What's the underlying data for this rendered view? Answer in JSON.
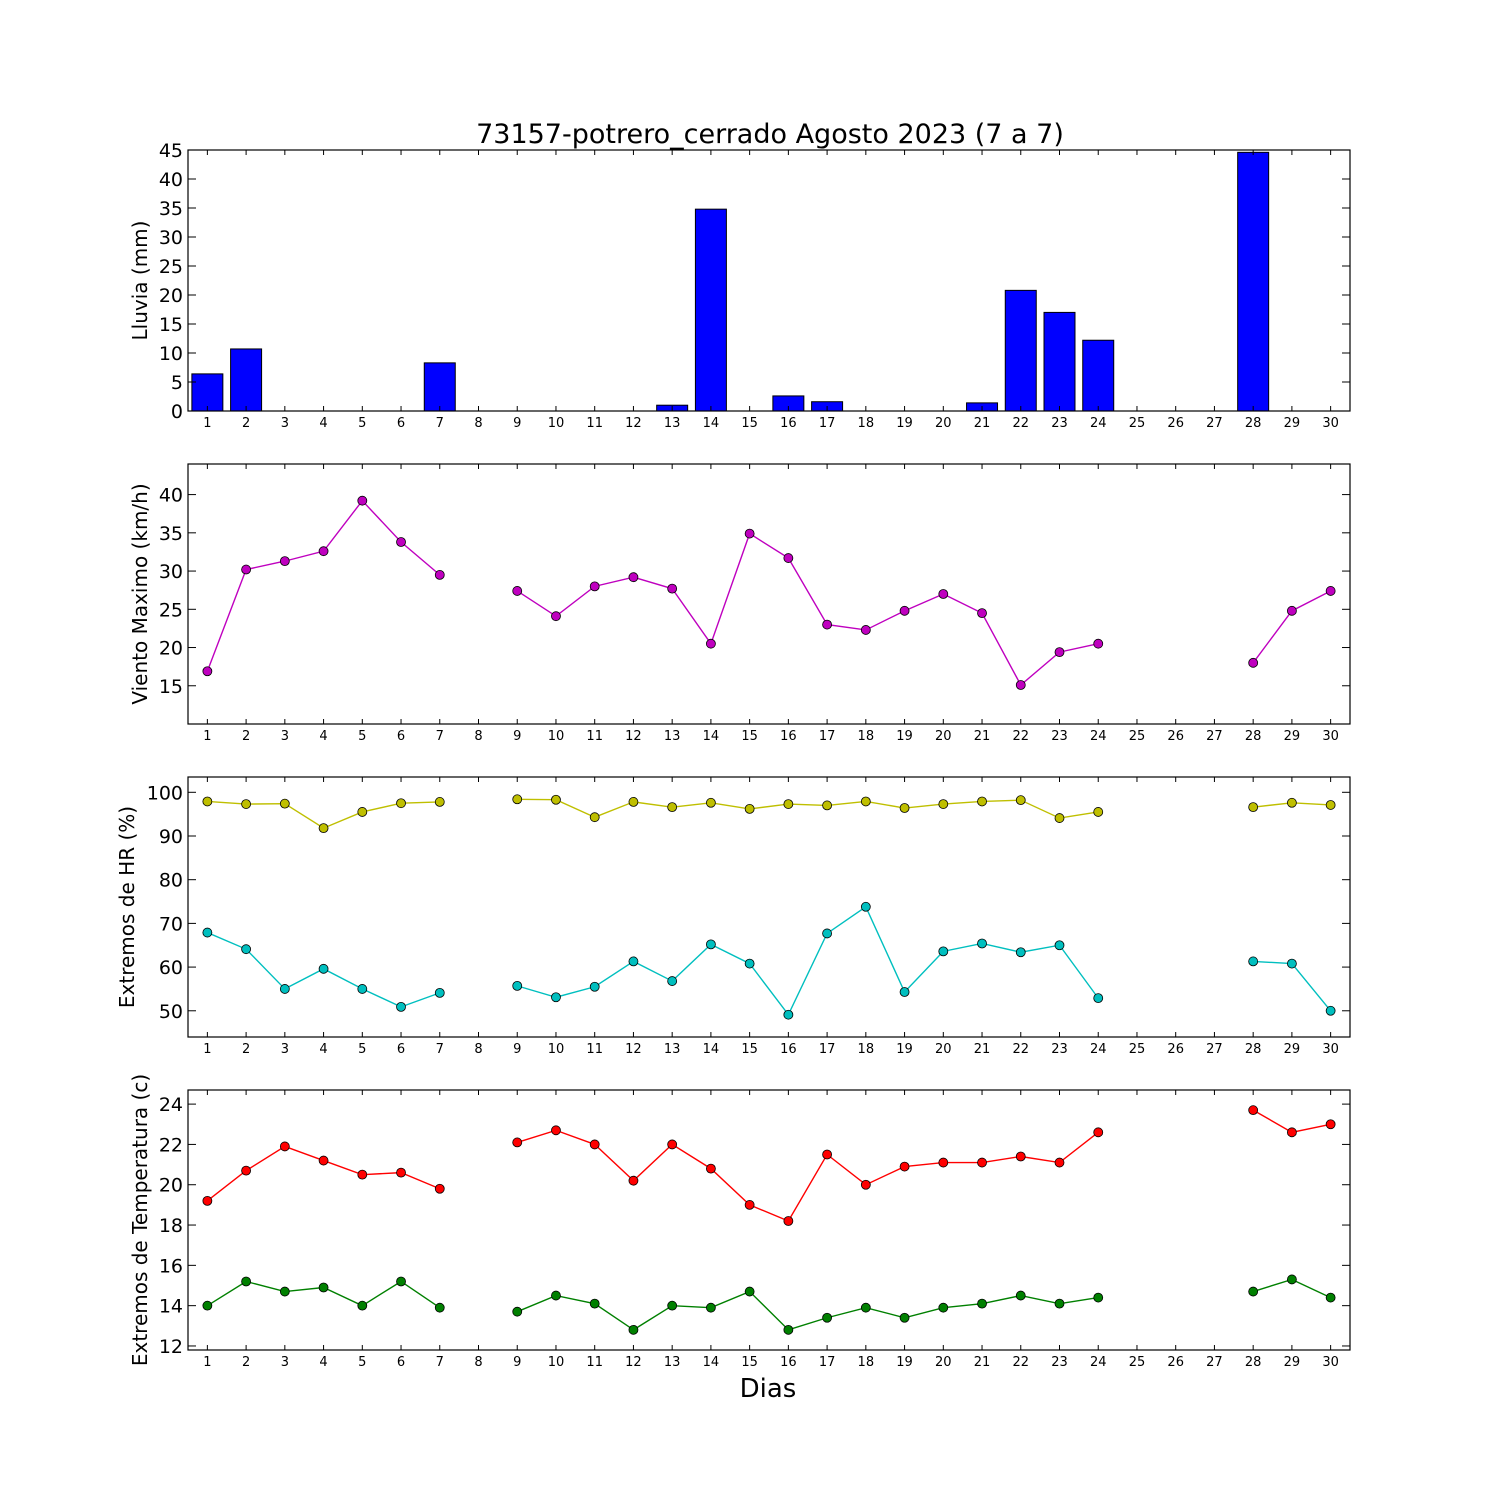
{
  "title": "73157-potrero_cerrado Agosto 2023  (7 a 7)",
  "xlabel": "Dias",
  "colors": {
    "rain_bar": "#0000ff",
    "wind": "#bf00bf",
    "hr_max": "#bfbf00",
    "hr_min": "#00bfbf",
    "temp_max": "#ff0000",
    "temp_min": "#008000"
  },
  "chart_data": [
    {
      "type": "bar",
      "ylabel": "Lluvia (mm)",
      "x": [
        1,
        2,
        3,
        4,
        5,
        6,
        7,
        8,
        9,
        10,
        11,
        12,
        13,
        14,
        15,
        16,
        17,
        18,
        19,
        20,
        21,
        22,
        23,
        24,
        25,
        26,
        27,
        28,
        29,
        30
      ],
      "xlim": [
        0.5,
        30.5
      ],
      "ylim": [
        0,
        45
      ],
      "yticks": [
        0,
        5,
        10,
        15,
        20,
        25,
        30,
        35,
        40,
        45
      ],
      "series": [
        {
          "values": [
            6.4,
            10.7,
            0,
            0,
            0,
            0,
            8.3,
            0,
            0,
            0,
            0,
            0,
            1,
            34.8,
            0,
            2.6,
            1.6,
            0,
            0,
            0,
            1.4,
            20.8,
            17,
            12.2,
            0,
            0,
            0,
            44.6,
            0,
            0
          ]
        }
      ]
    },
    {
      "type": "line",
      "ylabel": "Viento Maximo (km/h)",
      "x": [
        1,
        2,
        3,
        4,
        5,
        6,
        7,
        8,
        9,
        10,
        11,
        12,
        13,
        14,
        15,
        16,
        17,
        18,
        19,
        20,
        21,
        22,
        23,
        24,
        25,
        26,
        27,
        28,
        29,
        30
      ],
      "xlim": [
        0.5,
        30.5
      ],
      "ylim": [
        10,
        44
      ],
      "yticks": [
        15,
        20,
        25,
        30,
        35,
        40
      ],
      "series": [
        {
          "values": [
            16.9,
            30.2,
            31.3,
            32.6,
            39.2,
            33.8,
            29.5,
            null,
            27.4,
            24.1,
            28,
            29.2,
            27.7,
            20.5,
            34.9,
            31.7,
            23.0,
            22.3,
            24.8,
            27.0,
            24.5,
            15.1,
            19.4,
            20.5,
            null,
            null,
            null,
            18.0,
            24.8,
            27.4
          ]
        }
      ]
    },
    {
      "type": "line",
      "ylabel": "Extremos de HR (%)",
      "x": [
        1,
        2,
        3,
        4,
        5,
        6,
        7,
        8,
        9,
        10,
        11,
        12,
        13,
        14,
        15,
        16,
        17,
        18,
        19,
        20,
        21,
        22,
        23,
        24,
        25,
        26,
        27,
        28,
        29,
        30
      ],
      "xlim": [
        0.5,
        30.5
      ],
      "ylim": [
        44,
        103.5
      ],
      "yticks": [
        50,
        60,
        70,
        80,
        90,
        100
      ],
      "series": [
        {
          "values": [
            97.9,
            97.3,
            97.4,
            91.8,
            95.5,
            97.5,
            97.8,
            null,
            98.4,
            98.3,
            94.3,
            97.8,
            96.6,
            97.6,
            96.2,
            97.3,
            97.0,
            97.9,
            96.4,
            97.3,
            97.9,
            98.2,
            94.1,
            95.5,
            null,
            null,
            null,
            96.6,
            97.6,
            97.1
          ]
        },
        {
          "values": [
            67.9,
            64.1,
            55.0,
            59.6,
            55.0,
            50.9,
            54.1,
            null,
            55.7,
            53.1,
            55.5,
            61.3,
            56.8,
            65.2,
            60.8,
            49.1,
            67.7,
            73.8,
            54.3,
            63.6,
            65.4,
            63.4,
            65.0,
            52.9,
            null,
            null,
            null,
            61.3,
            60.8,
            50.0
          ]
        }
      ]
    },
    {
      "type": "line",
      "ylabel": "Extremos de Temperatura (c)",
      "x": [
        1,
        2,
        3,
        4,
        5,
        6,
        7,
        8,
        9,
        10,
        11,
        12,
        13,
        14,
        15,
        16,
        17,
        18,
        19,
        20,
        21,
        22,
        23,
        24,
        25,
        26,
        27,
        28,
        29,
        30
      ],
      "xlim": [
        0.5,
        30.5
      ],
      "ylim": [
        11.8,
        24.7
      ],
      "yticks": [
        12,
        14,
        16,
        18,
        20,
        22,
        24
      ],
      "series": [
        {
          "values": [
            19.2,
            20.7,
            21.9,
            21.2,
            20.5,
            20.6,
            19.8,
            null,
            22.1,
            22.7,
            22.0,
            20.2,
            22.0,
            20.8,
            19.0,
            18.2,
            21.5,
            20.0,
            20.9,
            21.1,
            21.1,
            21.4,
            21.1,
            22.6,
            null,
            null,
            null,
            23.7,
            22.6,
            23.0
          ]
        },
        {
          "values": [
            14.0,
            15.2,
            14.7,
            14.9,
            14.0,
            15.2,
            13.9,
            null,
            13.7,
            14.5,
            14.1,
            12.8,
            14.0,
            13.9,
            14.7,
            12.8,
            13.4,
            13.9,
            13.4,
            13.9,
            14.1,
            14.5,
            14.1,
            14.4,
            null,
            null,
            null,
            14.7,
            15.3,
            14.4
          ]
        }
      ]
    }
  ]
}
